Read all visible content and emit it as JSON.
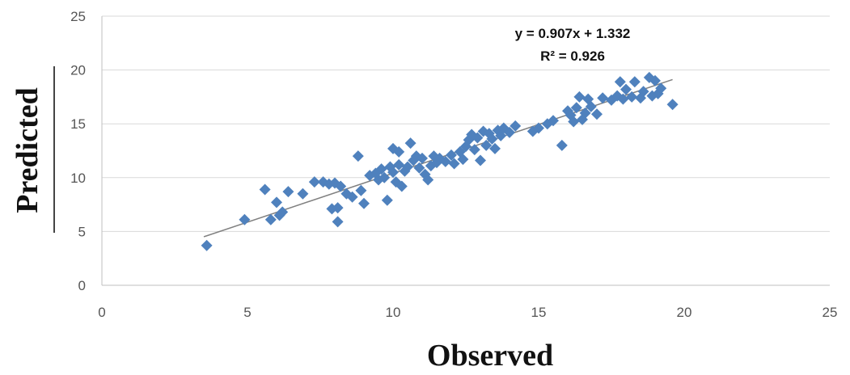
{
  "chart_data": {
    "type": "scatter",
    "title": "",
    "xlabel": "Observed",
    "ylabel": "Predicted",
    "xlim": [
      0,
      25
    ],
    "ylim": [
      0,
      25
    ],
    "xticks": [
      0,
      5,
      10,
      15,
      20,
      25
    ],
    "yticks": [
      0,
      5,
      10,
      15,
      20,
      25
    ],
    "grid": "horizontal",
    "colors": {
      "points": "#4f81bd",
      "trendline": "#808080"
    },
    "trendline": {
      "slope": 0.907,
      "intercept": 1.332,
      "x_range": [
        3.5,
        19.6
      ]
    },
    "annotations": {
      "equation": "y = 0.907x + 1.332",
      "r_squared": "R² = 0.926"
    },
    "series": [
      {
        "marker": "diamond",
        "points": [
          [
            3.6,
            3.7
          ],
          [
            4.9,
            6.1
          ],
          [
            5.6,
            8.9
          ],
          [
            5.8,
            6.1
          ],
          [
            6.0,
            7.7
          ],
          [
            6.1,
            6.5
          ],
          [
            6.2,
            6.8
          ],
          [
            6.4,
            8.7
          ],
          [
            6.9,
            8.5
          ],
          [
            7.3,
            9.6
          ],
          [
            7.6,
            9.6
          ],
          [
            7.8,
            9.4
          ],
          [
            7.9,
            7.1
          ],
          [
            8.0,
            9.5
          ],
          [
            8.1,
            5.9
          ],
          [
            8.1,
            7.2
          ],
          [
            8.2,
            9.2
          ],
          [
            8.4,
            8.5
          ],
          [
            8.6,
            8.2
          ],
          [
            8.8,
            12.0
          ],
          [
            8.9,
            8.8
          ],
          [
            9.0,
            7.6
          ],
          [
            9.2,
            10.2
          ],
          [
            9.4,
            10.4
          ],
          [
            9.5,
            9.8
          ],
          [
            9.6,
            10.8
          ],
          [
            9.7,
            10.0
          ],
          [
            9.8,
            7.9
          ],
          [
            9.9,
            11.0
          ],
          [
            10.0,
            12.7
          ],
          [
            10.0,
            10.5
          ],
          [
            10.1,
            9.6
          ],
          [
            10.2,
            12.4
          ],
          [
            10.2,
            11.2
          ],
          [
            10.3,
            9.2
          ],
          [
            10.4,
            10.6
          ],
          [
            10.5,
            11.0
          ],
          [
            10.6,
            13.2
          ],
          [
            10.7,
            11.6
          ],
          [
            10.8,
            12.0
          ],
          [
            10.9,
            10.9
          ],
          [
            11.0,
            11.8
          ],
          [
            11.1,
            10.3
          ],
          [
            11.2,
            9.8
          ],
          [
            11.3,
            11.1
          ],
          [
            11.4,
            12.0
          ],
          [
            11.5,
            11.4
          ],
          [
            11.6,
            11.8
          ],
          [
            11.8,
            11.5
          ],
          [
            12.0,
            12.1
          ],
          [
            12.1,
            11.3
          ],
          [
            12.3,
            12.4
          ],
          [
            12.4,
            11.7
          ],
          [
            12.5,
            12.9
          ],
          [
            12.6,
            13.5
          ],
          [
            12.7,
            14.0
          ],
          [
            12.8,
            12.6
          ],
          [
            12.9,
            13.7
          ],
          [
            13.0,
            11.6
          ],
          [
            13.1,
            14.3
          ],
          [
            13.2,
            13.0
          ],
          [
            13.3,
            14.1
          ],
          [
            13.4,
            13.6
          ],
          [
            13.5,
            12.7
          ],
          [
            13.6,
            14.4
          ],
          [
            13.7,
            13.9
          ],
          [
            13.8,
            14.6
          ],
          [
            14.0,
            14.2
          ],
          [
            14.2,
            14.8
          ],
          [
            14.8,
            14.3
          ],
          [
            15.0,
            14.6
          ],
          [
            15.3,
            15.0
          ],
          [
            15.5,
            15.3
          ],
          [
            15.8,
            13.0
          ],
          [
            16.0,
            16.2
          ],
          [
            16.1,
            15.8
          ],
          [
            16.2,
            15.2
          ],
          [
            16.3,
            16.5
          ],
          [
            16.4,
            17.5
          ],
          [
            16.5,
            15.4
          ],
          [
            16.6,
            16.0
          ],
          [
            16.7,
            17.3
          ],
          [
            16.8,
            16.6
          ],
          [
            17.0,
            15.9
          ],
          [
            17.2,
            17.4
          ],
          [
            17.5,
            17.2
          ],
          [
            17.7,
            17.6
          ],
          [
            17.8,
            18.9
          ],
          [
            17.9,
            17.3
          ],
          [
            18.0,
            18.2
          ],
          [
            18.2,
            17.5
          ],
          [
            18.3,
            18.9
          ],
          [
            18.5,
            17.4
          ],
          [
            18.6,
            18.0
          ],
          [
            18.8,
            19.3
          ],
          [
            18.9,
            17.6
          ],
          [
            19.0,
            19.0
          ],
          [
            19.1,
            17.8
          ],
          [
            19.2,
            18.3
          ],
          [
            19.6,
            16.8
          ]
        ]
      }
    ]
  }
}
